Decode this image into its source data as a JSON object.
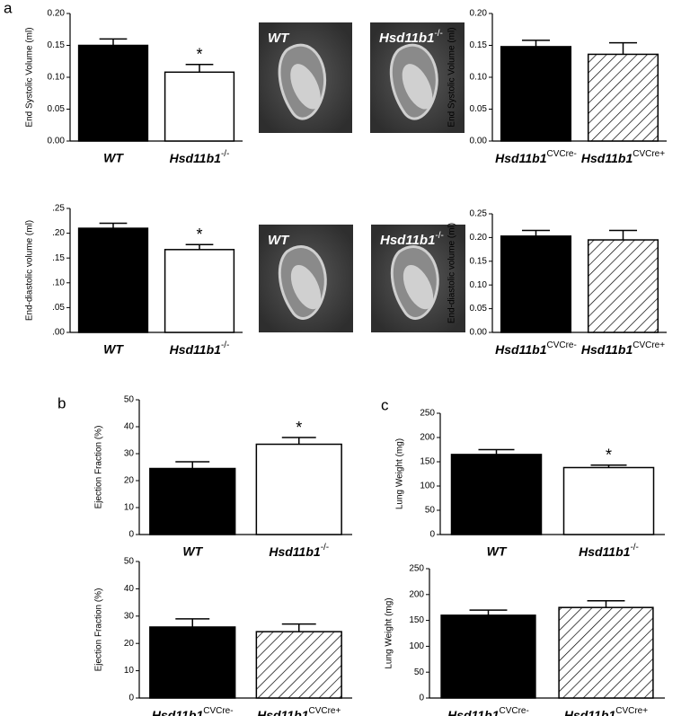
{
  "panel_labels": [
    "a",
    "b",
    "c"
  ],
  "images": [
    {
      "label": "WT"
    },
    {
      "label": "Hsd11b1-/-"
    },
    {
      "label": "WT"
    },
    {
      "label": "Hsd11b1-/-"
    }
  ],
  "chart_data": [
    {
      "type": "bar",
      "y_label": "End Systolic Volume (ml)",
      "categories": [
        "WT",
        "Hsd11b1-/-"
      ],
      "values": [
        0.15,
        0.108
      ],
      "errors": [
        0.01,
        0.012
      ],
      "value_annotations": [
        null,
        "*"
      ],
      "bar_styles": [
        "solid",
        "open"
      ],
      "ylim": [
        0,
        0.2
      ],
      "yticks": [
        {
          "value": 0,
          "label": "0.00"
        },
        {
          "value": 0.05,
          "label": "0.05"
        },
        {
          "value": 0.1,
          "label": "0.10"
        },
        {
          "value": 0.15,
          "label": "0.15"
        },
        {
          "value": 0.2,
          "label": "0.20"
        }
      ]
    },
    {
      "type": "bar",
      "y_label": "End Systolic Volume (ml)",
      "categories": [
        "Hsd11b1CVCre-",
        "Hsd11b1CVCre+"
      ],
      "values": [
        0.148,
        0.136
      ],
      "errors": [
        0.01,
        0.018
      ],
      "bar_styles": [
        "solid",
        "hatched"
      ],
      "ylim": [
        0,
        0.2
      ],
      "yticks": [
        {
          "value": 0,
          "label": "0.00"
        },
        {
          "value": 0.05,
          "label": "0.05"
        },
        {
          "value": 0.1,
          "label": "0.10"
        },
        {
          "value": 0.15,
          "label": "0.15"
        },
        {
          "value": 0.2,
          "label": "0.20"
        }
      ]
    },
    {
      "type": "bar",
      "y_label": "End-diastolic volume (ml)",
      "categories": [
        "WT",
        "Hsd11b1-/-"
      ],
      "values": [
        0.21,
        0.167
      ],
      "errors": [
        0.01,
        0.01
      ],
      "value_annotations": [
        null,
        "*"
      ],
      "bar_styles": [
        "solid",
        "open"
      ],
      "ylim": [
        0,
        0.25
      ],
      "yticks": [
        {
          "value": 0,
          "label": ".00"
        },
        {
          "value": 0.05,
          "label": ".05"
        },
        {
          "value": 0.1,
          "label": ".10"
        },
        {
          "value": 0.15,
          "label": ".15"
        },
        {
          "value": 0.2,
          "label": ".20"
        },
        {
          "value": 0.25,
          "label": ".25"
        }
      ]
    },
    {
      "type": "bar",
      "y_label": "End-diastolic volume (ml)",
      "categories": [
        "Hsd11b1CVCre-",
        "Hsd11b1CVCre+"
      ],
      "values": [
        0.203,
        0.195
      ],
      "errors": [
        0.012,
        0.02
      ],
      "bar_styles": [
        "solid",
        "hatched"
      ],
      "ylim": [
        0,
        0.25
      ],
      "yticks": [
        {
          "value": 0,
          "label": "0.00"
        },
        {
          "value": 0.05,
          "label": "0.05"
        },
        {
          "value": 0.1,
          "label": "0.10"
        },
        {
          "value": 0.15,
          "label": "0.15"
        },
        {
          "value": 0.2,
          "label": "0.20"
        },
        {
          "value": 0.25,
          "label": "0.25"
        }
      ]
    },
    {
      "type": "bar",
      "y_label": "Ejection Fraction (%)",
      "categories": [
        "WT",
        "Hsd11b1-/-"
      ],
      "values": [
        24.5,
        33.5
      ],
      "errors": [
        2.5,
        2.5
      ],
      "value_annotations": [
        null,
        "*"
      ],
      "bar_styles": [
        "solid",
        "open"
      ],
      "ylim": [
        0,
        50
      ],
      "yticks": [
        0,
        10,
        20,
        30,
        40,
        50
      ]
    },
    {
      "type": "bar",
      "y_label": "Ejection Fraction (%)",
      "categories": [
        "Hsd11b1CVCre-",
        "Hsd11b1CVCre+"
      ],
      "values": [
        26,
        24.3
      ],
      "errors": [
        3,
        2.8
      ],
      "bar_styles": [
        "solid",
        "hatched"
      ],
      "ylim": [
        0,
        50
      ],
      "yticks": [
        0,
        10,
        20,
        30,
        40,
        50
      ]
    },
    {
      "type": "bar",
      "y_label": "Lung Weight (mg)",
      "categories": [
        "WT",
        "Hsd11b1-/-"
      ],
      "values": [
        165,
        138
      ],
      "errors": [
        10,
        5
      ],
      "value_annotations": [
        null,
        "*"
      ],
      "bar_styles": [
        "solid",
        "open"
      ],
      "ylim": [
        0,
        250
      ],
      "yticks": [
        0,
        50,
        100,
        150,
        200,
        250
      ]
    },
    {
      "type": "bar",
      "y_label": "Lung Weight (mg)",
      "categories": [
        "Hsd11b1CVCre-",
        "Hsd11b1CVCre+"
      ],
      "values": [
        160,
        175
      ],
      "errors": [
        10,
        13
      ],
      "bar_styles": [
        "solid",
        "hatched"
      ],
      "ylim": [
        0,
        250
      ],
      "yticks": [
        0,
        50,
        100,
        150,
        200,
        250
      ]
    }
  ]
}
